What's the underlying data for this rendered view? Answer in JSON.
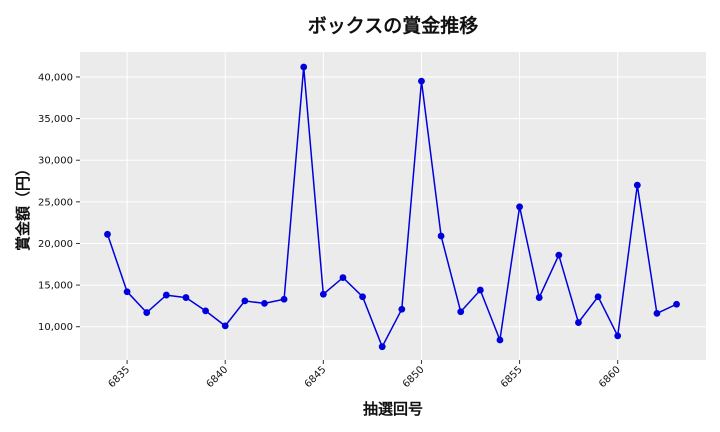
{
  "chart_data": {
    "type": "line",
    "title": "ボックスの賞金推移",
    "xlabel": "抽選回号",
    "ylabel": "賞金額（円）",
    "x": [
      6834,
      6835,
      6836,
      6837,
      6838,
      6839,
      6840,
      6841,
      6842,
      6843,
      6844,
      6845,
      6846,
      6847,
      6848,
      6849,
      6850,
      6851,
      6852,
      6853,
      6854,
      6855,
      6856,
      6857,
      6858,
      6859,
      6860,
      6861,
      6862,
      6863
    ],
    "series": [
      {
        "values": [
          21100,
          14200,
          11700,
          13800,
          13500,
          11900,
          10100,
          13100,
          12800,
          13300,
          41200,
          13900,
          15900,
          13600,
          7600,
          12100,
          39500,
          20900,
          11800,
          14400,
          8400,
          24400,
          13500,
          18600,
          10500,
          13600,
          8900,
          27000,
          11600,
          12700
        ],
        "color": "#0000dd"
      }
    ],
    "xticks": [
      "6835",
      "6840",
      "6845",
      "6850",
      "6855",
      "6860"
    ],
    "xtick_values": [
      6835,
      6840,
      6845,
      6850,
      6855,
      6860
    ],
    "yticks": [
      "10,000",
      "15,000",
      "20,000",
      "25,000",
      "30,000",
      "35,000",
      "40,000"
    ],
    "ytick_values": [
      10000,
      15000,
      20000,
      25000,
      30000,
      35000,
      40000
    ],
    "xlim": [
      6832.6,
      6864.5
    ],
    "ylim": [
      6000,
      43000
    ],
    "grid": true,
    "plot_background": "#ebebeb"
  }
}
